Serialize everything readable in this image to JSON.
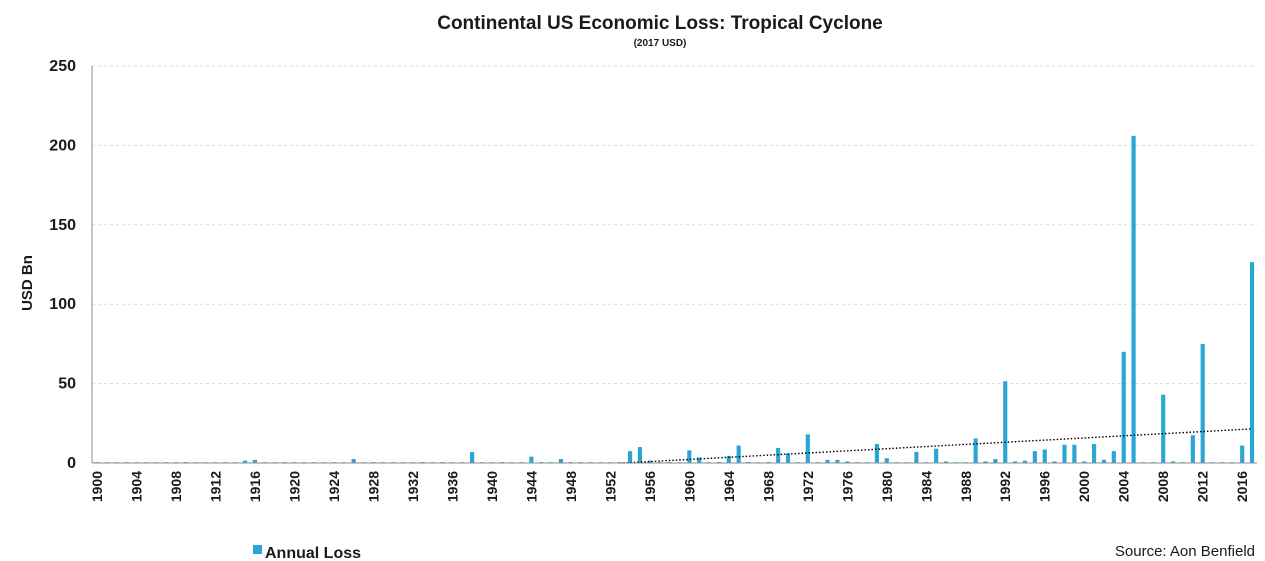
{
  "chart_data": {
    "type": "bar",
    "title": "Continental US Economic Loss: Tropical Cyclone",
    "subtitle": "(2017 USD)",
    "ylabel": "USD Bn",
    "xlabel": "",
    "ylim": [
      0,
      250
    ],
    "yticks": [
      0,
      50,
      100,
      150,
      200,
      250
    ],
    "x_start": 1900,
    "x_end": 2017,
    "x_tick_step": 4,
    "x_tick_labels": [
      "1900",
      "1904",
      "1908",
      "1912",
      "1916",
      "1920",
      "1924",
      "1928",
      "1932",
      "1936",
      "1940",
      "1944",
      "1948",
      "1952",
      "1956",
      "1960",
      "1964",
      "1968",
      "1972",
      "1976",
      "1980",
      "1984",
      "1988",
      "1992",
      "1996",
      "2000",
      "2004",
      "2008",
      "2012",
      "2016"
    ],
    "grid": "horizontal dashed",
    "legend_position": "bottom-left",
    "series": [
      {
        "name": "Annual Loss",
        "color": "#29a6d6",
        "years": [
          1900,
          1901,
          1902,
          1903,
          1904,
          1905,
          1906,
          1907,
          1908,
          1909,
          1910,
          1911,
          1912,
          1913,
          1914,
          1915,
          1916,
          1917,
          1918,
          1919,
          1920,
          1921,
          1922,
          1923,
          1924,
          1925,
          1926,
          1927,
          1928,
          1929,
          1930,
          1931,
          1932,
          1933,
          1934,
          1935,
          1936,
          1937,
          1938,
          1939,
          1940,
          1941,
          1942,
          1943,
          1944,
          1945,
          1946,
          1947,
          1948,
          1949,
          1950,
          1951,
          1952,
          1953,
          1954,
          1955,
          1956,
          1957,
          1958,
          1959,
          1960,
          1961,
          1962,
          1963,
          1964,
          1965,
          1966,
          1967,
          1968,
          1969,
          1970,
          1971,
          1972,
          1973,
          1974,
          1975,
          1976,
          1977,
          1978,
          1979,
          1980,
          1981,
          1982,
          1983,
          1984,
          1985,
          1986,
          1987,
          1988,
          1989,
          1990,
          1991,
          1992,
          1993,
          1994,
          1995,
          1996,
          1997,
          1998,
          1999,
          2000,
          2001,
          2002,
          2003,
          2004,
          2005,
          2006,
          2007,
          2008,
          2009,
          2010,
          2011,
          2012,
          2013,
          2014,
          2015,
          2016,
          2017
        ],
        "values": [
          0.5,
          0.4,
          0.3,
          0.3,
          0.4,
          0.3,
          0.5,
          0.3,
          0.3,
          0.6,
          0.4,
          0.3,
          0.3,
          0.3,
          0.3,
          1.5,
          2.0,
          0.5,
          0.5,
          0.6,
          0.3,
          0.5,
          0.3,
          0.3,
          0.3,
          0.3,
          2.5,
          0.3,
          0.6,
          0.5,
          0.3,
          0.3,
          0.5,
          0.6,
          0.3,
          0.6,
          0.3,
          0.3,
          7.0,
          0.3,
          0.5,
          0.6,
          0.5,
          0.5,
          4.0,
          0.6,
          0.5,
          2.5,
          0.6,
          0.6,
          0.5,
          0.3,
          0.3,
          0.6,
          7.5,
          10.0,
          1.5,
          0.6,
          0.6,
          0.5,
          8.0,
          3.5,
          0.5,
          0.6,
          4.5,
          11.0,
          0.6,
          0.5,
          0.6,
          9.5,
          6.0,
          0.5,
          18.0,
          0.5,
          2.0,
          2.0,
          1.0,
          0.5,
          0.5,
          12.0,
          3.0,
          0.5,
          0.5,
          7.0,
          0.5,
          9.0,
          1.0,
          0.3,
          0.5,
          15.5,
          1.0,
          2.5,
          51.5,
          1.0,
          1.5,
          7.5,
          8.5,
          1.0,
          11.5,
          11.5,
          1.0,
          12.0,
          2.0,
          7.5,
          70.0,
          206.0,
          0.5,
          0.5,
          43.0,
          1.0,
          0.5,
          17.5,
          75.0,
          0.5,
          0.5,
          0.5,
          11.0,
          126.5
        ]
      }
    ],
    "trendline": {
      "style": "dotted",
      "color": "#000000",
      "start_year": 1900,
      "start_value": -18,
      "end_year": 2017,
      "end_value": 21.5
    }
  },
  "legend": {
    "label": "Annual Loss",
    "color": "#29a6d6"
  },
  "source": "Source: Aon Benfield"
}
